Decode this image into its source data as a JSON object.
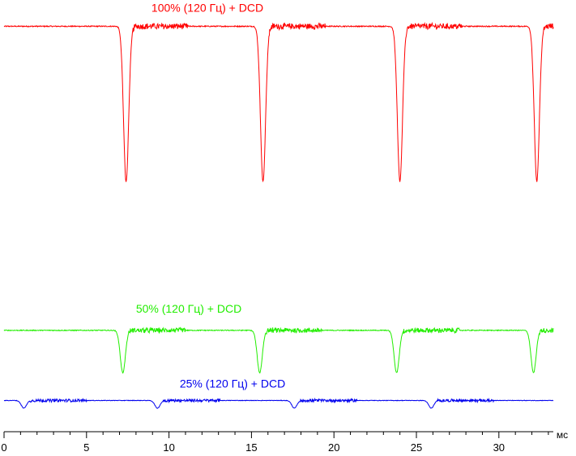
{
  "chart_data": {
    "type": "line",
    "title": "",
    "xlabel": "мс",
    "ylabel": "",
    "xlim": [
      0,
      33.3
    ],
    "ylim": [
      0,
      1
    ],
    "x_ticks": [
      0,
      5,
      10,
      15,
      20,
      25,
      30
    ],
    "grid": false,
    "period_ms": 8.33,
    "series": [
      {
        "name": "100% (120 Гц) + DCD",
        "color": "#ff0000",
        "baseline": 0.948,
        "dip_min": 0.585,
        "dip_centers": [
          7.4,
          15.7,
          24.0,
          32.3
        ],
        "noise_level": 0.006
      },
      {
        "name": "50% (120 Гц) + DCD",
        "color": "#22ee00",
        "baseline": 0.237,
        "dip_min": 0.138,
        "dip_centers": [
          7.2,
          15.5,
          23.8,
          32.1
        ],
        "noise_level": 0.005
      },
      {
        "name": "25% (120 Гц) + DCD",
        "color": "#0000ee",
        "baseline": 0.073,
        "dip_min": 0.055,
        "dip_centers": [
          1.2,
          9.3,
          17.6,
          25.9
        ],
        "noise_level": 0.003
      }
    ]
  }
}
